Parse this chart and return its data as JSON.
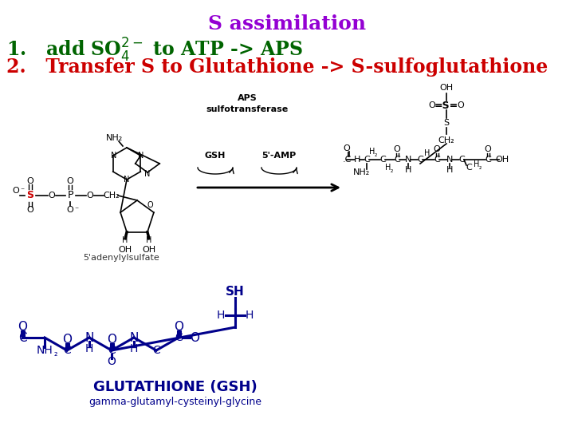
{
  "title": "S assimilation",
  "title_color": "#9400D3",
  "title_fontsize": 18,
  "line1_color": "#006400",
  "line1_fontsize": 17,
  "line2_color": "#cc0000",
  "line2_fontsize": 17,
  "bg_color": "#ffffff",
  "label_glutathione": "GLUTATHIONE (GSH)",
  "label_glutathione_color": "#00008B",
  "label_glutathione_fontsize": 13,
  "label_gamma": "gamma-glutamyl-cysteinyl-glycine",
  "label_gamma_color": "#00008B",
  "label_gamma_fontsize": 9,
  "label_5adenylyl": "5'adenylylsulfate",
  "label_5adenylyl_color": "#333333",
  "label_5adenylyl_fontsize": 8,
  "black": "#000000",
  "red_s": "#cc0000"
}
